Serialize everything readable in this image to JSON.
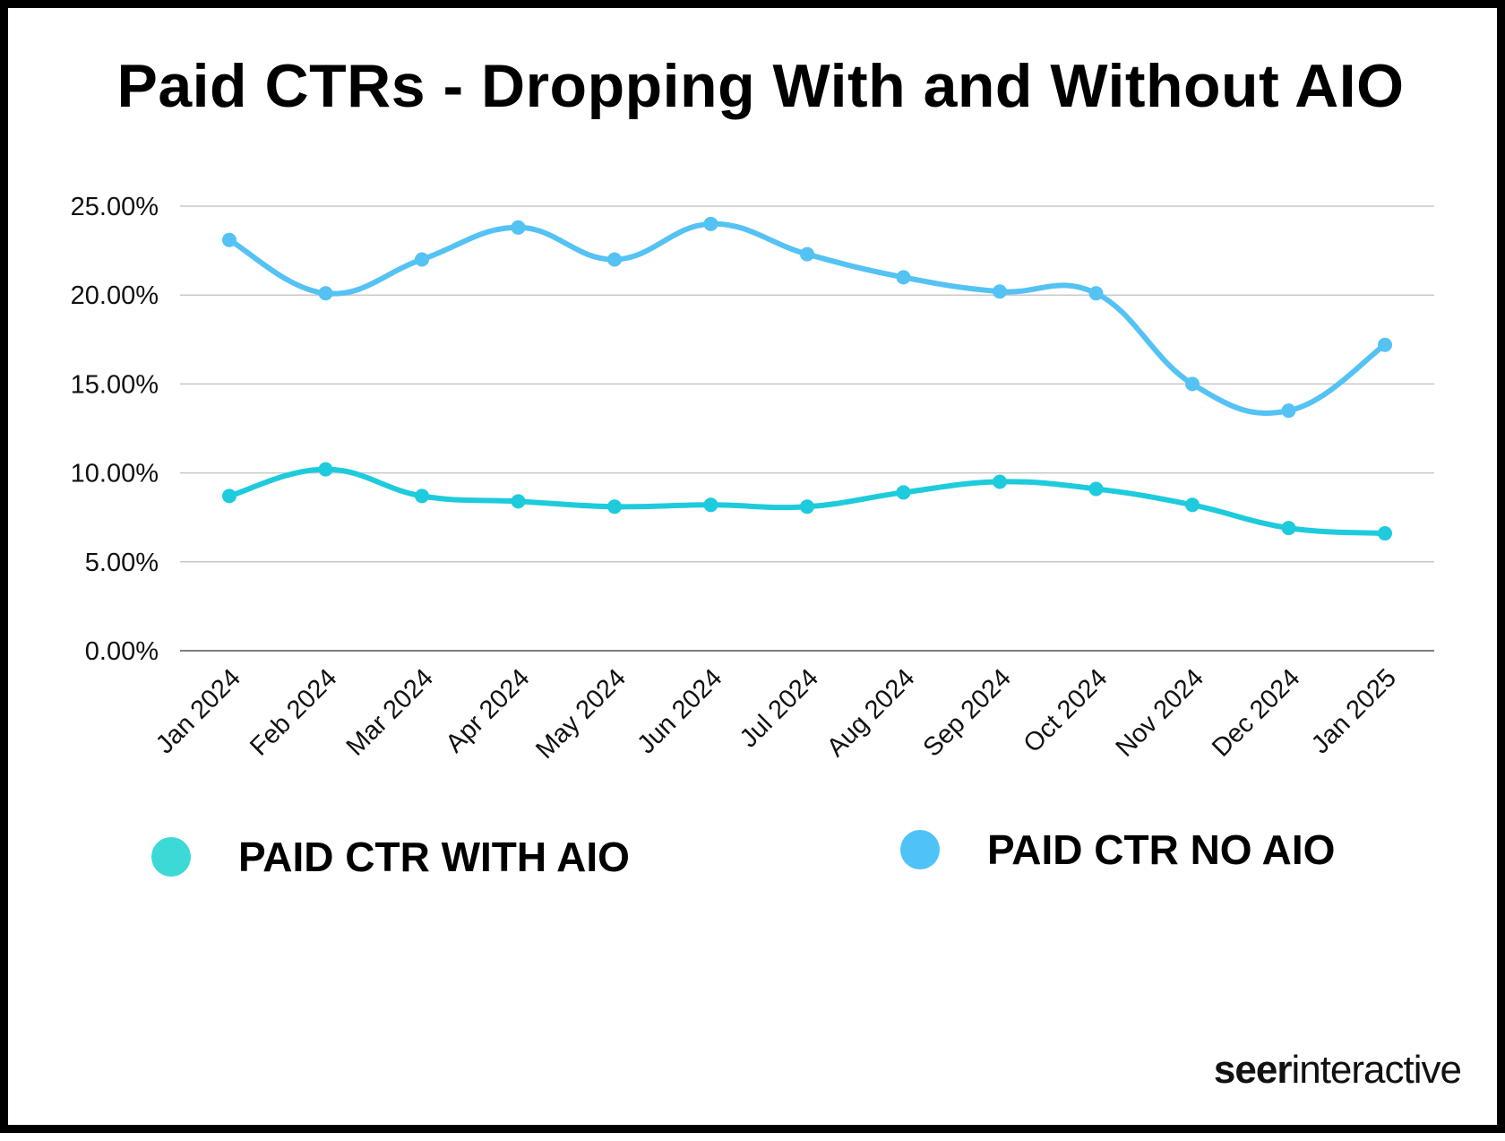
{
  "chart_data": {
    "type": "line",
    "title": "Paid CTRs - Dropping With and Without AIO",
    "categories": [
      "Jan 2024",
      "Feb 2024",
      "Mar 2024",
      "Apr 2024",
      "May 2024",
      "Jun 2024",
      "Jul 2024",
      "Aug 2024",
      "Sep 2024",
      "Oct 2024",
      "Nov 2024",
      "Dec 2024",
      "Jan 2025"
    ],
    "yticks": [
      "0.00%",
      "5.00%",
      "10.00%",
      "15.00%",
      "20.00%",
      "25.00%"
    ],
    "ylim": [
      0,
      25
    ],
    "grid": true,
    "legend_position": "bottom",
    "series": [
      {
        "name": "PAID CTR WITH AIO",
        "color": "#1ecbdc",
        "legend_color": "#3dd9d6",
        "values": [
          8.7,
          10.2,
          8.7,
          8.4,
          8.1,
          8.2,
          8.1,
          8.9,
          9.5,
          9.1,
          8.2,
          6.9,
          6.6
        ]
      },
      {
        "name": "PAID CTR NO AIO",
        "color": "#55c2f4",
        "legend_color": "#4fc3f7",
        "values": [
          23.1,
          20.1,
          22.0,
          23.8,
          22.0,
          24.0,
          22.3,
          21.0,
          20.2,
          20.1,
          15.0,
          13.5,
          17.2
        ]
      }
    ]
  },
  "brand": {
    "part1": "seer",
    "part2": "interactive"
  }
}
